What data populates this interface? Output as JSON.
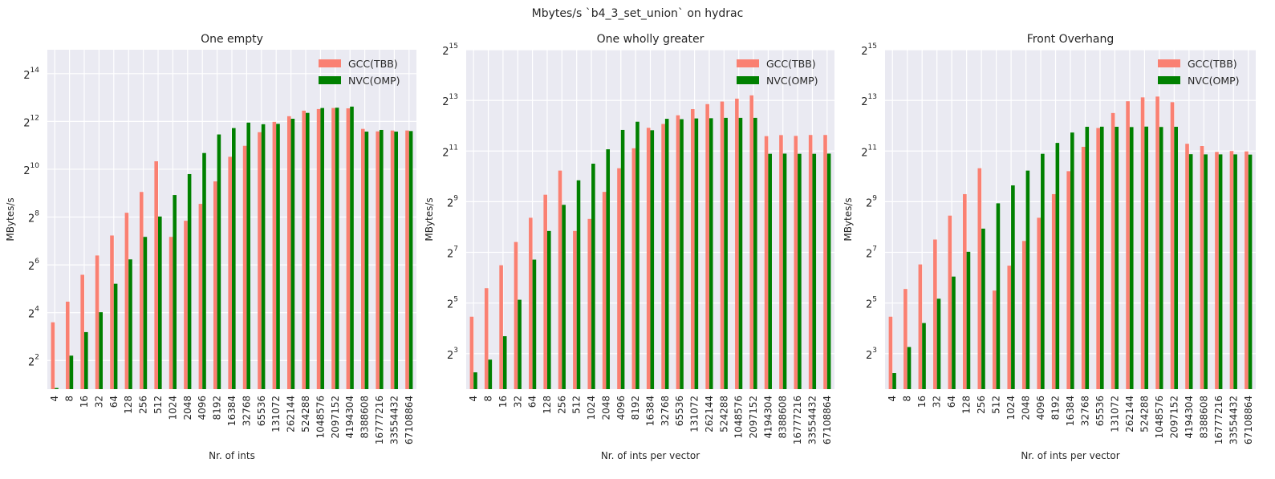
{
  "suptitle": "Mbytes/s `b4_3_set_union` on hydrac",
  "colors": {
    "gcc": "#fa8072",
    "nvc": "#008000",
    "plot_bg": "#eaeaf2",
    "grid": "#ffffff"
  },
  "chart_data": [
    {
      "type": "bar",
      "title": "One empty",
      "xlabel": "Nr. of ints",
      "ylabel": "MBytes/s",
      "yscale": "log2",
      "ylim_log2": [
        0.8,
        15.0
      ],
      "yticks": [
        {
          "base": "2",
          "exp": "2"
        },
        {
          "base": "2",
          "exp": "4"
        },
        {
          "base": "2",
          "exp": "6"
        },
        {
          "base": "2",
          "exp": "8"
        },
        {
          "base": "2",
          "exp": "10"
        },
        {
          "base": "2",
          "exp": "12"
        },
        {
          "base": "2",
          "exp": "14"
        }
      ],
      "grid": true,
      "legend": "top-right",
      "categories": [
        "4",
        "8",
        "16",
        "32",
        "64",
        "128",
        "256",
        "512",
        "1024",
        "2048",
        "4096",
        "8192",
        "16384",
        "32768",
        "65536",
        "131072",
        "262144",
        "524288",
        "1048576",
        "2097152",
        "4194304",
        "8388608",
        "16777216",
        "33554432",
        "67108864"
      ],
      "series": [
        {
          "name": "GCC(TBB)",
          "values": [
            12.1,
            22,
            48,
            84,
            150,
            290,
            530,
            1290,
            144,
            230,
            375,
            720,
            1470,
            2020,
            3000,
            4050,
            4770,
            5600,
            5870,
            6050,
            5990,
            3300,
            3070,
            3150,
            3150
          ]
        },
        {
          "name": "NVC(OMP)",
          "values": [
            1.8,
            4.6,
            9.1,
            16.2,
            37,
            75,
            144,
            260,
            485,
            890,
            1640,
            2810,
            3380,
            3960,
            3780,
            3820,
            4430,
            5250,
            6050,
            6100,
            6300,
            3050,
            3200,
            3050,
            3100
          ]
        }
      ]
    },
    {
      "type": "bar",
      "title": "One wholly greater",
      "xlabel": "Nr. of ints per vector",
      "ylabel": "MBytes/s",
      "yscale": "log2",
      "ylim_log2": [
        1.6,
        15.0
      ],
      "yticks": [
        {
          "base": "2",
          "exp": "3"
        },
        {
          "base": "2",
          "exp": "5"
        },
        {
          "base": "2",
          "exp": "7"
        },
        {
          "base": "2",
          "exp": "9"
        },
        {
          "base": "2",
          "exp": "11"
        },
        {
          "base": "2",
          "exp": "13"
        },
        {
          "base": "2",
          "exp": "15"
        }
      ],
      "grid": true,
      "legend": "top-right",
      "categories": [
        "4",
        "8",
        "16",
        "32",
        "64",
        "128",
        "256",
        "512",
        "1024",
        "2048",
        "4096",
        "8192",
        "16384",
        "32768",
        "65536",
        "131072",
        "262144",
        "524288",
        "1048576",
        "2097152",
        "4194304",
        "8388608",
        "16777216",
        "33554432",
        "67108864"
      ],
      "series": [
        {
          "name": "GCC(TBB)",
          "values": [
            22,
            48,
            90,
            170,
            330,
            620,
            1200,
            230,
            320,
            670,
            1280,
            2210,
            3870,
            4300,
            5450,
            6450,
            7400,
            7940,
            8600,
            9400,
            3080,
            3170,
            3100,
            3180,
            3180
          ]
        },
        {
          "name": "NVC(OMP)",
          "values": [
            4.8,
            6.8,
            12.9,
            35,
            105,
            230,
            470,
            920,
            1450,
            2150,
            3650,
            4570,
            3620,
            4950,
            4900,
            5000,
            5030,
            5080,
            5080,
            5080,
            1900,
            1910,
            1900,
            1900,
            1910
          ]
        }
      ]
    },
    {
      "type": "bar",
      "title": "Front Overhang",
      "xlabel": "Nr. of ints per vector",
      "ylabel": "MBytes/s",
      "yscale": "log2",
      "ylim_log2": [
        1.6,
        15.0
      ],
      "yticks": [
        {
          "base": "2",
          "exp": "3"
        },
        {
          "base": "2",
          "exp": "5"
        },
        {
          "base": "2",
          "exp": "7"
        },
        {
          "base": "2",
          "exp": "9"
        },
        {
          "base": "2",
          "exp": "11"
        },
        {
          "base": "2",
          "exp": "13"
        },
        {
          "base": "2",
          "exp": "15"
        }
      ],
      "grid": true,
      "legend": "top-right",
      "categories": [
        "4",
        "8",
        "16",
        "32",
        "64",
        "128",
        "256",
        "512",
        "1024",
        "2048",
        "4096",
        "8192",
        "16384",
        "32768",
        "65536",
        "131072",
        "262144",
        "524288",
        "1048576",
        "2097152",
        "4194304",
        "8388608",
        "16777216",
        "33554432",
        "67108864"
      ],
      "series": [
        {
          "name": "GCC(TBB)",
          "values": [
            22,
            47,
            92,
            182,
            350,
            630,
            1280,
            45,
            89,
            175,
            330,
            630,
            1180,
            2300,
            3850,
            5800,
            8000,
            8900,
            9100,
            7800,
            2500,
            2350,
            2000,
            2050,
            2030
          ]
        },
        {
          "name": "NVC(OMP)",
          "values": [
            4.7,
            9.6,
            18.5,
            36,
            66,
            130,
            245,
            490,
            800,
            1200,
            1900,
            2560,
            3400,
            3980,
            3990,
            3980,
            3950,
            4000,
            3960,
            3980,
            1880,
            1870,
            1870,
            1870,
            1860
          ]
        }
      ]
    }
  ]
}
